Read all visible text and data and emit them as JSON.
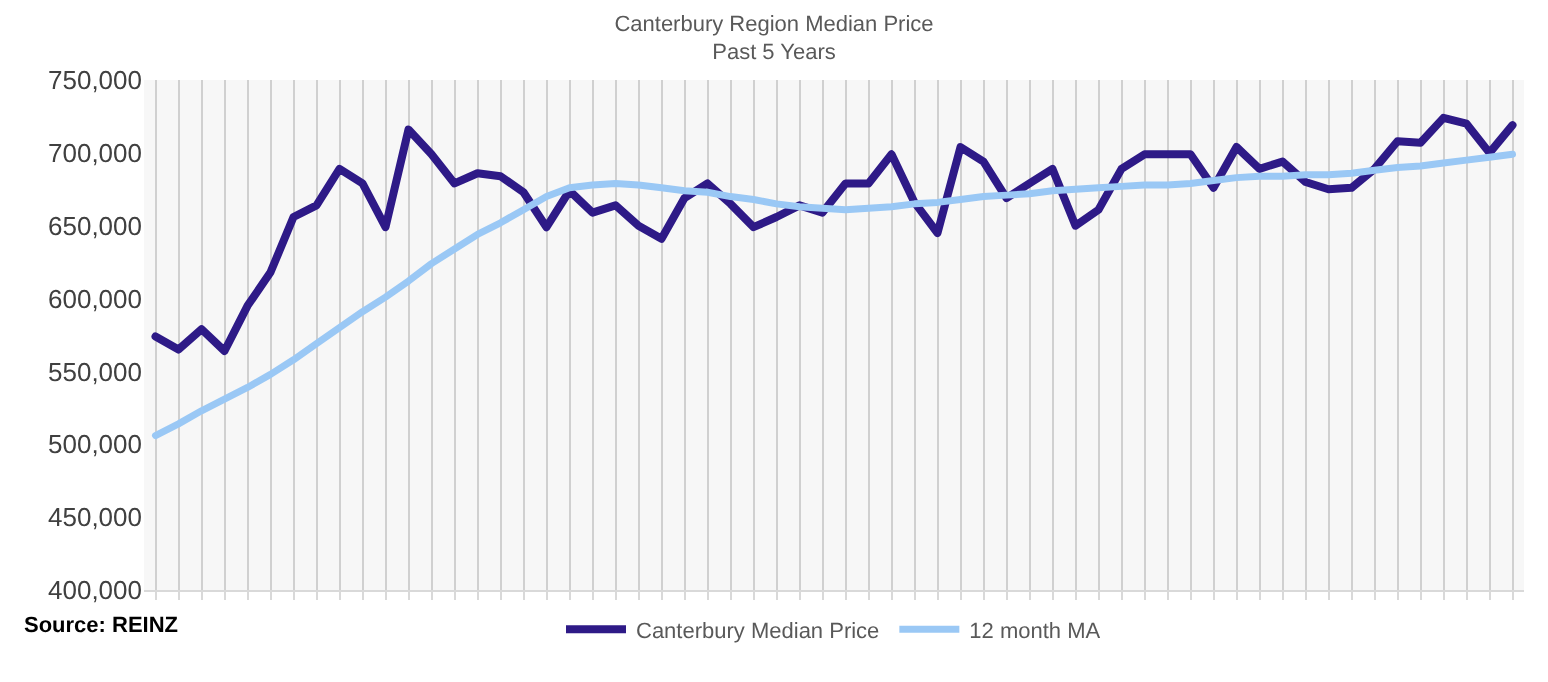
{
  "chart_data": {
    "type": "line",
    "title": "Canterbury Region Median Price",
    "subtitle": "Past 5 Years",
    "categories": [
      null,
      null,
      null,
      null,
      null,
      null,
      null,
      null,
      null,
      null,
      null,
      null,
      null,
      null,
      null,
      null,
      null,
      null,
      null,
      null,
      null,
      null,
      null,
      null,
      null,
      null,
      null,
      null,
      null,
      null,
      null,
      null,
      null,
      null,
      null,
      null,
      null,
      null,
      null,
      null,
      null,
      null,
      null,
      null,
      null,
      null,
      null,
      null,
      null,
      null,
      null,
      null,
      null,
      null,
      null,
      null,
      null,
      null,
      null,
      null
    ],
    "series": [
      {
        "name": "Canterbury Median Price",
        "color": "#2e1a87",
        "values": [
          574000,
          565000,
          579000,
          564000,
          595000,
          618000,
          656000,
          664000,
          689000,
          679000,
          649000,
          716000,
          699000,
          679000,
          686000,
          684000,
          673000,
          649000,
          674000,
          659000,
          664000,
          650000,
          641000,
          669000,
          679000,
          665000,
          649000,
          656000,
          664000,
          659000,
          679000,
          679000,
          699000,
          666000,
          645000,
          704000,
          694000,
          669000,
          679000,
          689000,
          650000,
          661000,
          689000,
          699000,
          699000,
          699000,
          676000,
          704000,
          689000,
          694000,
          680000,
          675000,
          676000,
          689000,
          708000,
          707000,
          724000,
          720000,
          700000,
          719000
        ]
      },
      {
        "name": "12 month MA",
        "color": "#9ac8f5",
        "values": [
          506000,
          514000,
          523000,
          531000,
          539000,
          548000,
          558000,
          569000,
          580000,
          591000,
          601000,
          612000,
          624000,
          634000,
          644000,
          652000,
          661000,
          670000,
          676000,
          678000,
          679000,
          678000,
          676000,
          674000,
          673000,
          670000,
          668000,
          665000,
          663000,
          662000,
          661000,
          662000,
          663000,
          665000,
          666000,
          668000,
          670000,
          671000,
          672000,
          674000,
          675000,
          676000,
          677000,
          678000,
          678000,
          679000,
          681000,
          683000,
          684000,
          684000,
          685000,
          685000,
          686000,
          688000,
          690000,
          691000,
          693000,
          695000,
          697000,
          699000
        ]
      }
    ],
    "ylim": [
      400000,
      750000
    ],
    "yticks": [
      {
        "value": 400000,
        "label": "400,000"
      },
      {
        "value": 450000,
        "label": "450,000"
      },
      {
        "value": 500000,
        "label": "500,000"
      },
      {
        "value": 550000,
        "label": "550,000"
      },
      {
        "value": 600000,
        "label": "600,000"
      },
      {
        "value": 650000,
        "label": "650,000"
      },
      {
        "value": 700000,
        "label": "700,000"
      },
      {
        "value": 750000,
        "label": "750,000"
      }
    ],
    "grid": "x",
    "legend": "bottom",
    "marker": "none",
    "line_style": "solid",
    "annotations": [
      "Source: REINZ"
    ]
  }
}
